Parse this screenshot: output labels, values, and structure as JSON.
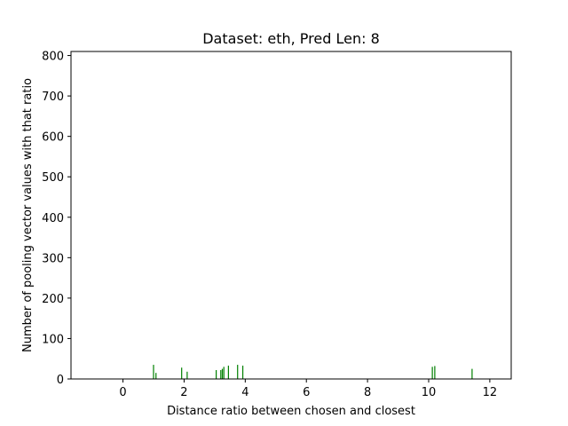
{
  "chart_data": {
    "type": "bar",
    "title": "Dataset: eth, Pred Len: 8",
    "xlabel": "Distance ratio between chosen and closest",
    "ylabel": "Number of pooling vector values with that ratio",
    "xlim": [
      -1.7,
      12.7
    ],
    "ylim": [
      0,
      810
    ],
    "xticks": [
      0,
      2,
      4,
      6,
      8,
      10,
      12
    ],
    "yticks": [
      0,
      100,
      200,
      300,
      400,
      500,
      600,
      700,
      800
    ],
    "bar_color": "#008000",
    "grid": false,
    "x": [
      1.0,
      1.08,
      1.92,
      2.1,
      3.05,
      3.2,
      3.25,
      3.3,
      3.45,
      3.75,
      3.92,
      10.12,
      10.2,
      11.42
    ],
    "values": [
      35,
      15,
      28,
      18,
      22,
      22,
      25,
      30,
      33,
      35,
      33,
      30,
      32,
      25
    ]
  }
}
